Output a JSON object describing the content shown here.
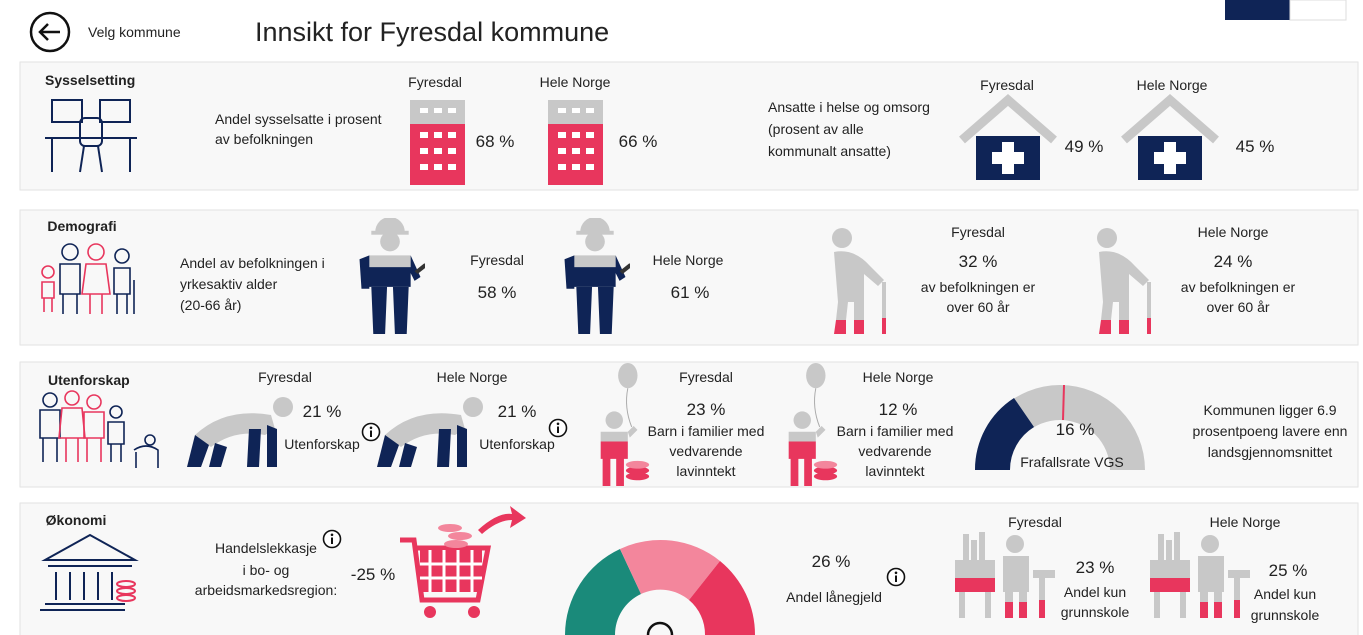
{
  "header": {
    "back": "Velg kommune",
    "title": "Innsikt for Fyresdal kommune"
  },
  "sysselsetting": {
    "title": "Sysselsetting",
    "employment_label": [
      "Andel sysselsatte i prosent",
      "av befolkningen"
    ],
    "employment": [
      {
        "region": "Fyresdal",
        "value": "68 %"
      },
      {
        "region": "Hele Norge",
        "value": "66 %"
      }
    ],
    "health_label": [
      "Ansatte i helse og omsorg",
      "(prosent av alle",
      "kommunalt ansatte)"
    ],
    "health": [
      {
        "region": "Fyresdal",
        "value": "49 %"
      },
      {
        "region": "Hele Norge",
        "value": "45 %"
      }
    ]
  },
  "demografi": {
    "title": "Demografi",
    "working_age_label": [
      "Andel av befolkningen i",
      "yrkesaktiv alder",
      "(20-66 år)"
    ],
    "working_age": [
      {
        "region": "Fyresdal",
        "value": "58 %"
      },
      {
        "region": "Hele Norge",
        "value": "61 %"
      }
    ],
    "elderly": [
      {
        "region": "Fyresdal",
        "value": "32 %",
        "caption": [
          "av befolkningen er",
          "over 60 år"
        ]
      },
      {
        "region": "Hele Norge",
        "value": "24 %",
        "caption": [
          "av befolkningen er",
          "over 60 år"
        ]
      }
    ]
  },
  "utenforskap": {
    "title": "Utenforskap",
    "outside": [
      {
        "region": "Fyresdal",
        "value": "21 %",
        "caption": "Utenforskap"
      },
      {
        "region": "Hele Norge",
        "value": "21 %",
        "caption": "Utenforskap"
      }
    ],
    "low_income": [
      {
        "region": "Fyresdal",
        "value": "23 %",
        "caption": [
          "Barn i familier med",
          "vedvarende",
          "lavinntekt"
        ]
      },
      {
        "region": "Hele Norge",
        "value": "12 %",
        "caption": [
          "Barn i familier med",
          "vedvarende",
          "lavinntekt"
        ]
      }
    ],
    "dropout": {
      "value": "16 %",
      "caption": "Frafallsrate VGS"
    },
    "comparison": [
      "Kommunen ligger 6.9",
      "prosentpoeng lavere enn",
      "landsgjennomsnittet"
    ]
  },
  "okonomi": {
    "title": "Økonomi",
    "trade_label": [
      "Handelslekkasje",
      "i bo- og",
      "arbeidsmarkedsregion:"
    ],
    "trade_value": "-25 %",
    "debt_value": "26 %",
    "debt_label": "Andel lånegjeld",
    "education": [
      {
        "region": "Fyresdal",
        "value": "23 %",
        "caption": [
          "Andel kun",
          "grunnskole"
        ]
      },
      {
        "region": "Hele Norge",
        "value": "25 %",
        "caption": [
          "Andel kun",
          "grunnskole"
        ]
      }
    ]
  }
}
